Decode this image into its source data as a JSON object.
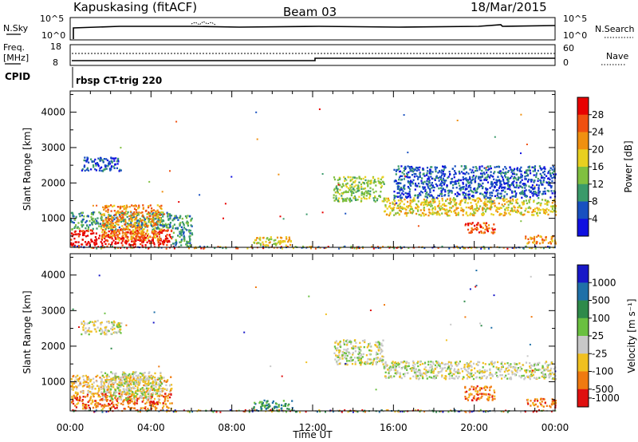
{
  "header": {
    "station": "Kapuskasing (fitACF)",
    "beam": "Beam 03",
    "date": "18/Mar/2015"
  },
  "top_panels": {
    "nsky_label": "N.Sky",
    "nsky_ticks": [
      "10^5",
      "10^0"
    ],
    "nsearch_label": "N.Search",
    "nsearch_ticks": [
      "10^5",
      "10^0"
    ],
    "freq_label": "Freq.",
    "freq_unit": "[MHz]",
    "freq_ticks": [
      "18",
      "8"
    ],
    "nave_label": "Nave",
    "nave_ticks": [
      "60",
      "0"
    ],
    "cpid_label": "CPID",
    "cpid_text": "rbsp CT-trig 220"
  },
  "chart_data": [
    {
      "type": "heatmap",
      "name": "power-panel",
      "ylabel": "Slant Range [km]",
      "xlabel": "Time UT",
      "x_ticks": [
        "00:00",
        "04:00",
        "08:00",
        "12:00",
        "16:00",
        "20:00",
        "00:00"
      ],
      "xlim_hours": [
        0,
        24
      ],
      "y_ticks": [
        "1000",
        "2000",
        "3000",
        "4000"
      ],
      "y_tick_values": [
        1000,
        2000,
        3000,
        4000
      ],
      "ylim": [
        180,
        4600
      ],
      "colorbar_label": "Power [dB]",
      "colorbar_ticks": [
        "4",
        "8",
        "12",
        "16",
        "20",
        "24",
        "28"
      ],
      "colorbar_values": [
        4,
        8,
        12,
        16,
        20,
        24,
        28
      ],
      "colorbar_range": [
        0,
        32
      ],
      "colors": [
        "#1010e0",
        "#1850c0",
        "#3a9a6a",
        "#80c040",
        "#e8d020",
        "#f09010",
        "#f05010",
        "#e80000"
      ],
      "regions": [
        {
          "t0": 0.0,
          "t1": 5.0,
          "r0": 250,
          "r1": 700,
          "level": 7
        },
        {
          "t0": 0.0,
          "t1": 5.0,
          "r0": 700,
          "r1": 1200,
          "level": 2
        },
        {
          "t0": 0.5,
          "t1": 2.5,
          "r0": 2350,
          "r1": 2750,
          "level": 1
        },
        {
          "t0": 1.5,
          "t1": 4.5,
          "r0": 400,
          "r1": 1400,
          "level": 5
        },
        {
          "t0": 5.0,
          "t1": 6.0,
          "r0": 250,
          "r1": 1100,
          "level": 2
        },
        {
          "t0": 9.0,
          "t1": 11.0,
          "r0": 250,
          "r1": 500,
          "level": 4
        },
        {
          "t0": 13.0,
          "t1": 15.5,
          "r0": 1500,
          "r1": 2200,
          "level": 3
        },
        {
          "t0": 15.5,
          "t1": 24.0,
          "r0": 1100,
          "r1": 1600,
          "level": 4
        },
        {
          "t0": 16.0,
          "t1": 24.0,
          "r0": 1600,
          "r1": 2500,
          "level": 1
        },
        {
          "t0": 19.5,
          "t1": 21.0,
          "r0": 600,
          "r1": 900,
          "level": 6
        },
        {
          "t0": 22.5,
          "t1": 24.0,
          "r0": 300,
          "r1": 550,
          "level": 5
        }
      ]
    },
    {
      "type": "heatmap",
      "name": "velocity-panel",
      "ylabel": "Slant Range [km]",
      "xlabel": "Time UT",
      "x_ticks": [
        "00:00",
        "04:00",
        "08:00",
        "12:00",
        "16:00",
        "20:00",
        "00:00"
      ],
      "xlim_hours": [
        0,
        24
      ],
      "y_ticks": [
        "1000",
        "2000",
        "3000",
        "4000"
      ],
      "y_tick_values": [
        1000,
        2000,
        3000,
        4000
      ],
      "ylim": [
        180,
        4600
      ],
      "colorbar_label": "Velocity [m s⁻¹]",
      "colorbar_ticks": [
        "1000",
        "500",
        "100",
        "25",
        "-25",
        "-100",
        "-500",
        "-1000"
      ],
      "colors": [
        "#1818c8",
        "#1f70a8",
        "#2e8a4a",
        "#6ac040",
        "#c8c8c8",
        "#f0c020",
        "#f07a10",
        "#e01010"
      ],
      "regions": [
        {
          "t0": 0.0,
          "t1": 5.0,
          "r0": 250,
          "r1": 700,
          "level": 6
        },
        {
          "t0": 0.0,
          "t1": 5.0,
          "r0": 700,
          "r1": 1200,
          "level": 5
        },
        {
          "t0": 0.5,
          "t1": 2.5,
          "r0": 2350,
          "r1": 2750,
          "level": 4
        },
        {
          "t0": 1.5,
          "t1": 4.5,
          "r0": 500,
          "r1": 1300,
          "level": 4
        },
        {
          "t0": 9.0,
          "t1": 11.0,
          "r0": 250,
          "r1": 500,
          "level": 2
        },
        {
          "t0": 13.0,
          "t1": 15.5,
          "r0": 1500,
          "r1": 2200,
          "level": 4
        },
        {
          "t0": 15.5,
          "t1": 24.0,
          "r0": 1100,
          "r1": 1600,
          "level": 4
        },
        {
          "t0": 19.5,
          "t1": 21.0,
          "r0": 500,
          "r1": 900,
          "level": 6
        },
        {
          "t0": 22.5,
          "t1": 24.0,
          "r0": 300,
          "r1": 550,
          "level": 6
        }
      ]
    }
  ]
}
